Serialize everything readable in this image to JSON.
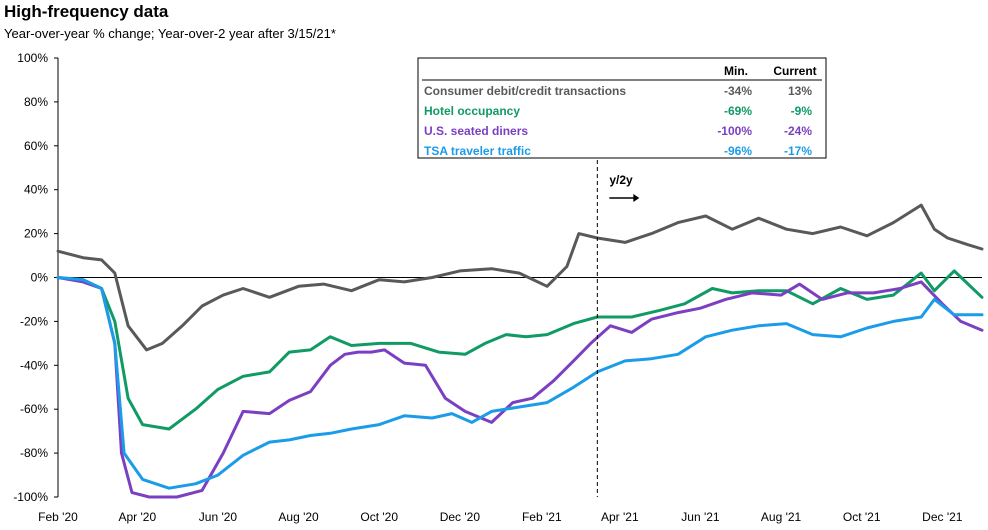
{
  "chart_data": {
    "type": "line",
    "title": "High-frequency data",
    "subtitle": "Year-over-year % change; Year-over-2 year after 3/15/21*",
    "xlabel": "",
    "ylabel": "",
    "ylim": [
      -100,
      100
    ],
    "y_ticks": [
      100,
      80,
      60,
      40,
      20,
      0,
      -20,
      -40,
      -60,
      -80,
      -100
    ],
    "y_tick_labels": [
      "100%",
      "80%",
      "60%",
      "40%",
      "20%",
      "0%",
      "-20%",
      "-40%",
      "-60%",
      "-80%",
      "-100%"
    ],
    "x_range": [
      "2020-02-01",
      "2021-12-31"
    ],
    "x_ticks": [
      "2020-02-01",
      "2020-04-01",
      "2020-06-01",
      "2020-08-01",
      "2020-10-01",
      "2020-12-01",
      "2021-02-01",
      "2021-04-01",
      "2021-06-01",
      "2021-08-01",
      "2021-10-01",
      "2021-12-01"
    ],
    "x_tick_labels": [
      "Feb '20",
      "Apr '20",
      "Jun '20",
      "Aug '20",
      "Oct '20",
      "Dec '20",
      "Feb '21",
      "Apr '21",
      "Jun '21",
      "Aug '21",
      "Oct '21",
      "Dec '21"
    ],
    "grid": false,
    "vline": {
      "date": "2021-03-15",
      "label": "y/2y"
    },
    "legend": {
      "placement": "top-right",
      "col_min": "Min.",
      "col_current": "Current",
      "rows": [
        {
          "label": "Consumer debit/credit transactions",
          "min": "-34%",
          "current": "13%",
          "color": "#595959"
        },
        {
          "label": "Hotel occupancy",
          "min": "-69%",
          "current": "-9%",
          "color": "#109a64"
        },
        {
          "label": "U.S. seated diners",
          "min": "-100%",
          "current": "-24%",
          "color": "#7b3fc2"
        },
        {
          "label": "TSA traveler traffic",
          "min": "-96%",
          "current": "-17%",
          "color": "#1b9ce8"
        }
      ]
    },
    "series": [
      {
        "name": "Consumer debit/credit transactions",
        "color": "#595959",
        "points": [
          [
            "2020-02-01",
            12
          ],
          [
            "2020-02-20",
            9
          ],
          [
            "2020-03-05",
            8
          ],
          [
            "2020-03-15",
            2
          ],
          [
            "2020-03-25",
            -22
          ],
          [
            "2020-04-08",
            -33
          ],
          [
            "2020-04-20",
            -30
          ],
          [
            "2020-05-05",
            -22
          ],
          [
            "2020-05-20",
            -13
          ],
          [
            "2020-06-05",
            -8
          ],
          [
            "2020-06-20",
            -5
          ],
          [
            "2020-07-10",
            -9
          ],
          [
            "2020-08-01",
            -4
          ],
          [
            "2020-08-20",
            -3
          ],
          [
            "2020-09-10",
            -6
          ],
          [
            "2020-10-01",
            -1
          ],
          [
            "2020-10-20",
            -2
          ],
          [
            "2020-11-10",
            0
          ],
          [
            "2020-12-01",
            3
          ],
          [
            "2020-12-25",
            4
          ],
          [
            "2021-01-15",
            2
          ],
          [
            "2021-02-05",
            -4
          ],
          [
            "2021-02-20",
            5
          ],
          [
            "2021-03-01",
            20
          ],
          [
            "2021-03-15",
            18
          ],
          [
            "2021-04-05",
            16
          ],
          [
            "2021-04-25",
            20
          ],
          [
            "2021-05-15",
            25
          ],
          [
            "2021-06-05",
            28
          ],
          [
            "2021-06-25",
            22
          ],
          [
            "2021-07-15",
            27
          ],
          [
            "2021-08-05",
            22
          ],
          [
            "2021-08-25",
            20
          ],
          [
            "2021-09-15",
            23
          ],
          [
            "2021-10-05",
            19
          ],
          [
            "2021-10-25",
            25
          ],
          [
            "2021-11-15",
            33
          ],
          [
            "2021-11-25",
            22
          ],
          [
            "2021-12-05",
            18
          ],
          [
            "2021-12-20",
            15
          ],
          [
            "2021-12-31",
            13
          ]
        ]
      },
      {
        "name": "Hotel occupancy",
        "color": "#109a64",
        "points": [
          [
            "2020-02-01",
            0
          ],
          [
            "2020-02-20",
            -1
          ],
          [
            "2020-03-05",
            -5
          ],
          [
            "2020-03-15",
            -20
          ],
          [
            "2020-03-25",
            -55
          ],
          [
            "2020-04-05",
            -67
          ],
          [
            "2020-04-25",
            -69
          ],
          [
            "2020-05-15",
            -60
          ],
          [
            "2020-06-01",
            -51
          ],
          [
            "2020-06-20",
            -45
          ],
          [
            "2020-07-10",
            -43
          ],
          [
            "2020-07-25",
            -34
          ],
          [
            "2020-08-10",
            -33
          ],
          [
            "2020-08-25",
            -27
          ],
          [
            "2020-09-10",
            -31
          ],
          [
            "2020-10-01",
            -30
          ],
          [
            "2020-10-25",
            -30
          ],
          [
            "2020-11-15",
            -34
          ],
          [
            "2020-12-05",
            -35
          ],
          [
            "2020-12-20",
            -30
          ],
          [
            "2021-01-05",
            -26
          ],
          [
            "2021-01-20",
            -27
          ],
          [
            "2021-02-05",
            -26
          ],
          [
            "2021-02-25",
            -21
          ],
          [
            "2021-03-15",
            -18
          ],
          [
            "2021-04-10",
            -18
          ],
          [
            "2021-05-01",
            -15
          ],
          [
            "2021-05-20",
            -12
          ],
          [
            "2021-06-10",
            -5
          ],
          [
            "2021-06-25",
            -7
          ],
          [
            "2021-07-15",
            -6
          ],
          [
            "2021-08-05",
            -6
          ],
          [
            "2021-08-25",
            -12
          ],
          [
            "2021-09-15",
            -5
          ],
          [
            "2021-10-05",
            -10
          ],
          [
            "2021-10-25",
            -8
          ],
          [
            "2021-11-15",
            2
          ],
          [
            "2021-11-25",
            -6
          ],
          [
            "2021-12-10",
            3
          ],
          [
            "2021-12-31",
            -9
          ]
        ]
      },
      {
        "name": "U.S. seated diners",
        "color": "#7b3fc2",
        "points": [
          [
            "2020-02-01",
            0
          ],
          [
            "2020-02-20",
            -2
          ],
          [
            "2020-03-05",
            -5
          ],
          [
            "2020-03-15",
            -30
          ],
          [
            "2020-03-20",
            -80
          ],
          [
            "2020-03-28",
            -98
          ],
          [
            "2020-04-10",
            -100
          ],
          [
            "2020-05-01",
            -100
          ],
          [
            "2020-05-20",
            -97
          ],
          [
            "2020-06-05",
            -80
          ],
          [
            "2020-06-20",
            -61
          ],
          [
            "2020-07-10",
            -62
          ],
          [
            "2020-07-25",
            -56
          ],
          [
            "2020-08-10",
            -52
          ],
          [
            "2020-08-25",
            -40
          ],
          [
            "2020-09-05",
            -35
          ],
          [
            "2020-09-15",
            -34
          ],
          [
            "2020-09-25",
            -34
          ],
          [
            "2020-10-05",
            -33
          ],
          [
            "2020-10-20",
            -39
          ],
          [
            "2020-11-05",
            -40
          ],
          [
            "2020-11-20",
            -55
          ],
          [
            "2020-12-05",
            -61
          ],
          [
            "2020-12-25",
            -66
          ],
          [
            "2021-01-10",
            -57
          ],
          [
            "2021-01-25",
            -55
          ],
          [
            "2021-02-10",
            -47
          ],
          [
            "2021-02-25",
            -38
          ],
          [
            "2021-03-10",
            -30
          ],
          [
            "2021-03-25",
            -22
          ],
          [
            "2021-04-10",
            -25
          ],
          [
            "2021-04-25",
            -19
          ],
          [
            "2021-05-15",
            -16
          ],
          [
            "2021-06-01",
            -14
          ],
          [
            "2021-06-20",
            -10
          ],
          [
            "2021-07-10",
            -7
          ],
          [
            "2021-08-01",
            -8
          ],
          [
            "2021-08-15",
            -3
          ],
          [
            "2021-09-01",
            -10
          ],
          [
            "2021-09-20",
            -7
          ],
          [
            "2021-10-10",
            -7
          ],
          [
            "2021-10-30",
            -5
          ],
          [
            "2021-11-15",
            -2
          ],
          [
            "2021-12-01",
            -12
          ],
          [
            "2021-12-15",
            -20
          ],
          [
            "2021-12-31",
            -24
          ]
        ]
      },
      {
        "name": "TSA traveler traffic",
        "color": "#1b9ce8",
        "points": [
          [
            "2020-02-01",
            0
          ],
          [
            "2020-02-20",
            -1
          ],
          [
            "2020-03-05",
            -5
          ],
          [
            "2020-03-15",
            -30
          ],
          [
            "2020-03-22",
            -80
          ],
          [
            "2020-04-05",
            -92
          ],
          [
            "2020-04-25",
            -96
          ],
          [
            "2020-05-15",
            -94
          ],
          [
            "2020-06-01",
            -90
          ],
          [
            "2020-06-20",
            -81
          ],
          [
            "2020-07-10",
            -75
          ],
          [
            "2020-07-25",
            -74
          ],
          [
            "2020-08-10",
            -72
          ],
          [
            "2020-08-25",
            -71
          ],
          [
            "2020-09-10",
            -69
          ],
          [
            "2020-10-01",
            -67
          ],
          [
            "2020-10-20",
            -63
          ],
          [
            "2020-11-10",
            -64
          ],
          [
            "2020-11-25",
            -62
          ],
          [
            "2020-12-10",
            -66
          ],
          [
            "2020-12-25",
            -61
          ],
          [
            "2021-01-15",
            -59
          ],
          [
            "2021-02-05",
            -57
          ],
          [
            "2021-02-25",
            -50
          ],
          [
            "2021-03-15",
            -43
          ],
          [
            "2021-04-05",
            -38
          ],
          [
            "2021-04-25",
            -37
          ],
          [
            "2021-05-15",
            -35
          ],
          [
            "2021-06-05",
            -27
          ],
          [
            "2021-06-25",
            -24
          ],
          [
            "2021-07-15",
            -22
          ],
          [
            "2021-08-05",
            -21
          ],
          [
            "2021-08-25",
            -26
          ],
          [
            "2021-09-15",
            -27
          ],
          [
            "2021-10-05",
            -23
          ],
          [
            "2021-10-25",
            -20
          ],
          [
            "2021-11-15",
            -18
          ],
          [
            "2021-11-25",
            -10
          ],
          [
            "2021-12-10",
            -17
          ],
          [
            "2021-12-31",
            -17
          ]
        ]
      }
    ]
  }
}
